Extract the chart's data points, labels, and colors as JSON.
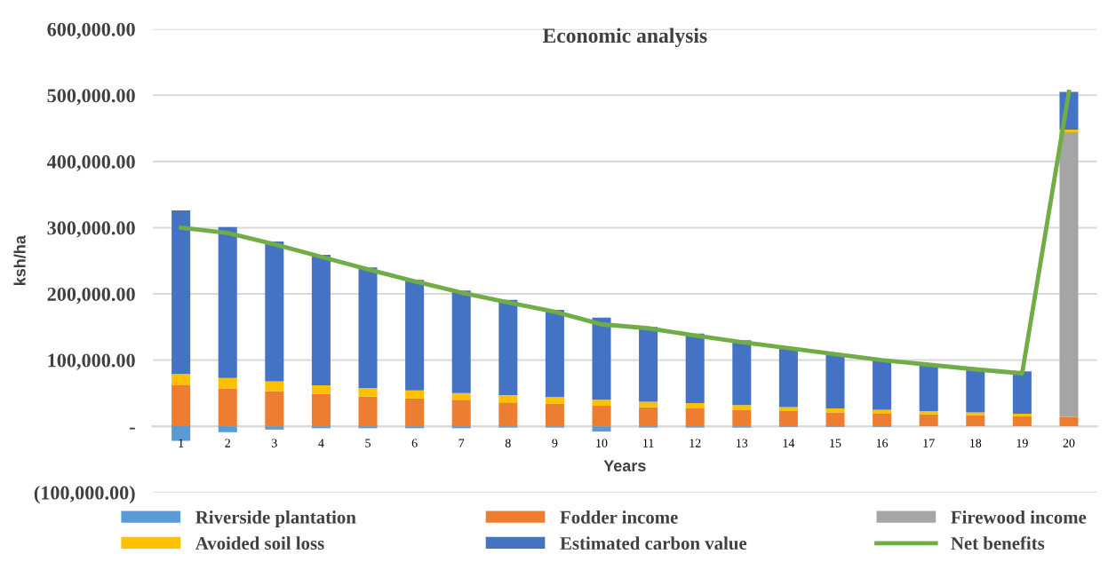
{
  "chart_data": {
    "type": "bar",
    "stacked": true,
    "title": "Economic analysis",
    "xlabel": "Years",
    "ylabel": "ksh/ha",
    "categories": [
      "1",
      "2",
      "3",
      "4",
      "5",
      "6",
      "7",
      "8",
      "9",
      "10",
      "11",
      "12",
      "13",
      "14",
      "15",
      "16",
      "17",
      "18",
      "19",
      "20"
    ],
    "series": [
      {
        "name": "Riverside plantation",
        "color": "#5b9bd5",
        "values": [
          -22000,
          -9000,
          -5000,
          -3000,
          -3000,
          -3000,
          -3000,
          -2000,
          -2000,
          -8000,
          -2000,
          -2000,
          -2000,
          -1000,
          -1000,
          -1000,
          0,
          0,
          0,
          0
        ]
      },
      {
        "name": "Fodder income",
        "color": "#ed7d31",
        "values": [
          62000,
          57000,
          53000,
          49000,
          45000,
          42000,
          40000,
          36000,
          34000,
          31000,
          29000,
          27000,
          25000,
          23000,
          21000,
          19000,
          18000,
          17000,
          15000,
          14000
        ]
      },
      {
        "name": "Firewood income",
        "color": "#a5a5a5",
        "values": [
          0,
          0,
          0,
          0,
          0,
          0,
          0,
          0,
          0,
          0,
          0,
          0,
          0,
          0,
          0,
          0,
          0,
          0,
          0,
          430000
        ]
      },
      {
        "name": "Avoided soil loss",
        "color": "#ffc000",
        "values": [
          17000,
          16000,
          15000,
          13000,
          13000,
          12000,
          10000,
          11000,
          10000,
          9000,
          8000,
          8000,
          7000,
          6000,
          6000,
          6000,
          5000,
          4000,
          4000,
          4000
        ]
      },
      {
        "name": "Estimated carbon value",
        "color": "#4472c4",
        "values": [
          247000,
          228000,
          211000,
          197000,
          182000,
          167000,
          155000,
          144000,
          132000,
          124000,
          113000,
          105000,
          98000,
          90000,
          83000,
          76000,
          71000,
          66000,
          64000,
          57000
        ]
      },
      {
        "name": "Net benefits",
        "type": "line",
        "color": "#70ad47",
        "values": [
          300000,
          292000,
          275000,
          256000,
          237000,
          219000,
          202000,
          187000,
          173000,
          154000,
          148000,
          137000,
          127000,
          118000,
          109000,
          100000,
          93000,
          86000,
          80000,
          505000
        ]
      }
    ],
    "ylim": [
      -100000,
      600000
    ],
    "yticks": [
      {
        "value": -100000,
        "label": "(100,000.00)"
      },
      {
        "value": 0,
        "label": "-"
      },
      {
        "value": 100000,
        "label": "100,000.00"
      },
      {
        "value": 200000,
        "label": "200,000.00"
      },
      {
        "value": 300000,
        "label": "300,000.00"
      },
      {
        "value": 400000,
        "label": "400,000.00"
      },
      {
        "value": 500000,
        "label": "500,000.00"
      },
      {
        "value": 600000,
        "label": "600,000.00"
      }
    ],
    "grid": "y",
    "legend": "bottom",
    "marker": "none",
    "line_style": "solid"
  }
}
